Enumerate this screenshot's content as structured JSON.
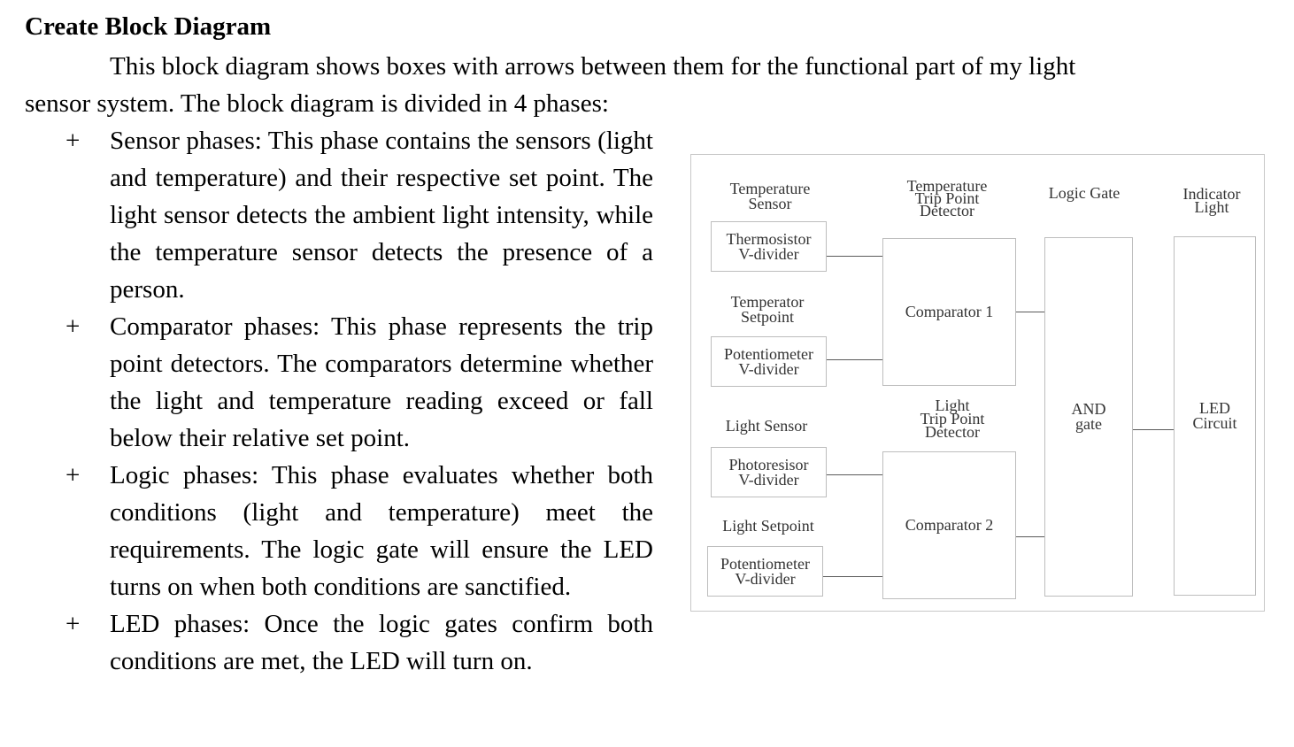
{
  "heading": "Create Block Diagram",
  "intro": "This block diagram shows boxes with arrows between them for the functional part of my light sensor system. The block diagram is divided in 4 phases:",
  "bullet_symbol": "+",
  "phases": [
    {
      "text": "Sensor phases: This phase contains the sensors (light and temperature) and their respective set point. The light sensor detects the ambient light intensity, while the temperature sensor detects the presence of a person."
    },
    {
      "text": "Comparator phases: This phase represents the trip point detectors. The comparators determine whether the light and temperature reading exceed or fall below their relative set point."
    },
    {
      "text": "Logic phases: This phase evaluates whether both conditions (light and temperature) meet the requirements. The logic gate will ensure the LED turns on when both conditions are sanctified."
    },
    {
      "text": "LED phases: Once the logic gates confirm both conditions are met, the LED will turn on."
    }
  ],
  "diagram": {
    "labels": {
      "temperature_sensor": "Temperature\nSensor",
      "temperator_setpoint": "Temperator\nSetpoint",
      "light_sensor": "Light Sensor",
      "light_setpoint": "Light Setpoint",
      "temp_trip_point_detector": "Temperature\nTrip Point\nDetector",
      "light_trip_point_detector": "Light\nTrip Point\nDetector",
      "logic_gate": "Logic Gate",
      "indicator_light": "Indicator\nLight"
    },
    "boxes": {
      "thermosistor": "Thermosistor\nV-divider",
      "potentiometer_temp": "Potentiometer\nV-divider",
      "photoresisor": "Photoresisor\nV-divider",
      "potentiometer_light": "Potentiometer\nV-divider",
      "comparator_1": "Comparator 1",
      "comparator_2": "Comparator 2",
      "and_gate": "AND\ngate",
      "led_circuit": "LED\nCircuit"
    }
  }
}
